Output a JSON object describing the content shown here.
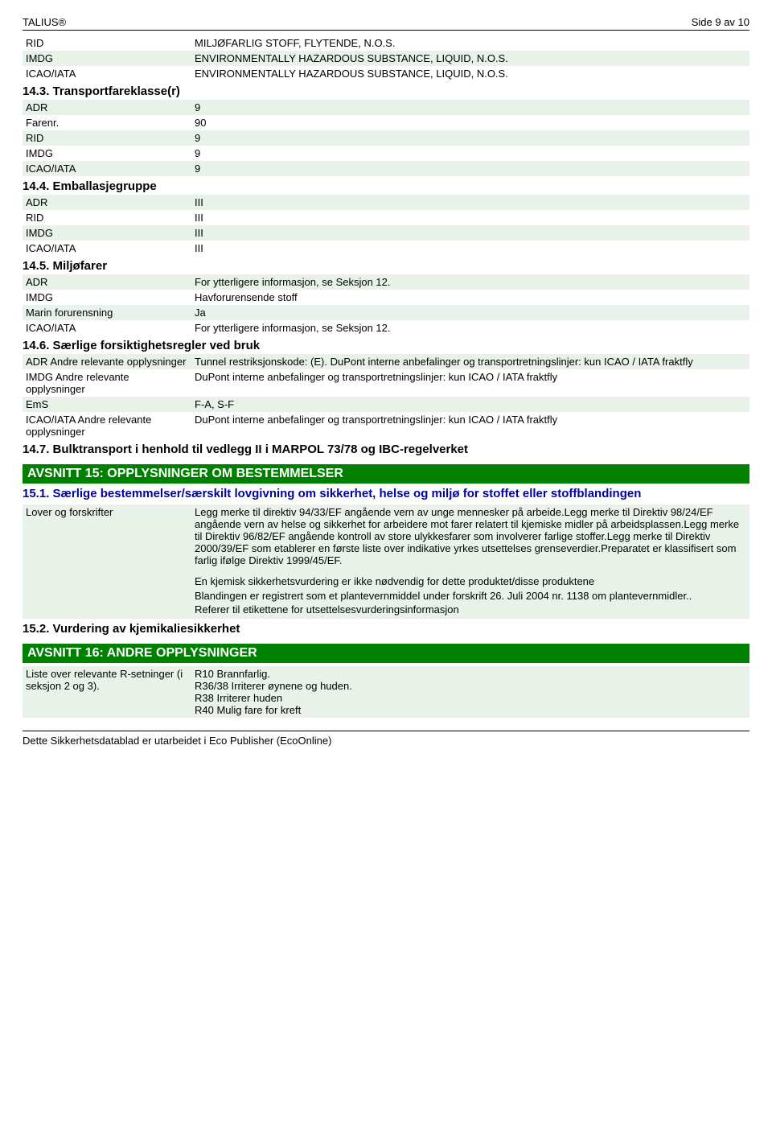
{
  "header": {
    "left": "TALIUS®",
    "right": "Side 9 av 10"
  },
  "rid_line": {
    "label": "RID",
    "value": "MILJØFARLIG STOFF, FLYTENDE, N.O.S."
  },
  "imdg_line": {
    "label": "IMDG",
    "value": "ENVIRONMENTALLY HAZARDOUS SUBSTANCE, LIQUID, N.O.S."
  },
  "icao_line": {
    "label": "ICAO/IATA",
    "value": "ENVIRONMENTALLY HAZARDOUS SUBSTANCE, LIQUID, N.O.S."
  },
  "s143": {
    "title": "14.3. Transportfareklasse(r)",
    "rows": [
      {
        "label": "ADR",
        "value": "9"
      },
      {
        "label": "Farenr.",
        "value": "90"
      },
      {
        "label": "RID",
        "value": "9"
      },
      {
        "label": "IMDG",
        "value": "9"
      },
      {
        "label": "ICAO/IATA",
        "value": "9"
      }
    ]
  },
  "s144": {
    "title": "14.4. Emballasjegruppe",
    "rows": [
      {
        "label": "ADR",
        "value": "III"
      },
      {
        "label": "RID",
        "value": "III"
      },
      {
        "label": "IMDG",
        "value": "III"
      },
      {
        "label": "ICAO/IATA",
        "value": "III"
      }
    ]
  },
  "s145": {
    "title": "14.5. Miljøfarer",
    "rows": [
      {
        "label": "ADR",
        "value": "For ytterligere informasjon, se Seksjon 12."
      },
      {
        "label": "IMDG",
        "value": "Havforurensende stoff"
      },
      {
        "label": "Marin forurensning",
        "value": "Ja"
      },
      {
        "label": "ICAO/IATA",
        "value": "For ytterligere informasjon, se Seksjon 12."
      }
    ]
  },
  "s146": {
    "title": "14.6. Særlige forsiktighetsregler ved bruk",
    "rows": [
      {
        "label": "ADR Andre relevante opplysninger",
        "value": "Tunnel restriksjonskode: (E). DuPont interne anbefalinger og transportretningslinjer: kun ICAO / IATA fraktfly"
      },
      {
        "label": "IMDG Andre relevante opplysninger",
        "value": "DuPont interne anbefalinger og transportretningslinjer: kun ICAO / IATA fraktfly"
      },
      {
        "label": "EmS",
        "value": "F-A, S-F"
      },
      {
        "label": "ICAO/IATA Andre relevante opplysninger",
        "value": "DuPont interne anbefalinger og transportretningslinjer: kun ICAO / IATA fraktfly"
      }
    ]
  },
  "s147": {
    "title": "14.7. Bulktransport i henhold til vedlegg II i MARPOL 73/78 og IBC-regelverket"
  },
  "avsnitt15": {
    "title": "AVSNITT 15: OPPLYSNINGER OM BESTEMMELSER"
  },
  "s151": {
    "title": "15.1. Særlige bestemmelser/særskilt lovgivning om sikkerhet, helse og miljø for stoffet eller stoffblandingen",
    "label": "Lover og forskrifter",
    "p1": "Legg merke til direktiv 94/33/EF angående vern av unge mennesker på arbeide.Legg merke til Direktiv 98/24/EF angående vern av helse og sikkerhet for arbeidere mot farer relatert til kjemiske midler på arbeidsplassen.Legg merke til Direktiv 96/82/EF angående kontroll av store ulykkesfarer som involverer farlige stoffer.Legg merke til Direktiv 2000/39/EF som etablerer en første liste over indikative yrkes utsettelses grenseverdier.Preparatet er klassifisert som farlig ifølge Direktiv 1999/45/EF.",
    "p2_l1": "En kjemisk sikkerhetsvurdering er ikke nødvendig for dette produktet/disse produktene",
    "p2_l2": "Blandingen er registrert som et plantevernmiddel under forskrift 26. Juli 2004 nr. 1138 om plantevernmidler..",
    "p2_l3": "Referer til etikettene for utsettelsesvurderingsinformasjon"
  },
  "s152": {
    "title": "15.2. Vurdering av kjemikaliesikkerhet"
  },
  "avsnitt16": {
    "title": "AVSNITT 16: ANDRE OPPLYSNINGER"
  },
  "s16rows": {
    "label": "Liste over relevante R-setninger (i seksjon 2 og 3).",
    "v1": "R10 Brannfarlig.",
    "v2": "R36/38 Irriterer øynene og huden.",
    "v3": "R38 Irriterer huden",
    "v4": "R40 Mulig fare for kreft"
  },
  "footer": "Dette Sikkerhetsdatablad er utarbeidet i Eco Publisher (EcoOnline)",
  "colors": {
    "section_bg": "#008000",
    "shade": "#e8f2e8",
    "blue": "#0000a0"
  }
}
